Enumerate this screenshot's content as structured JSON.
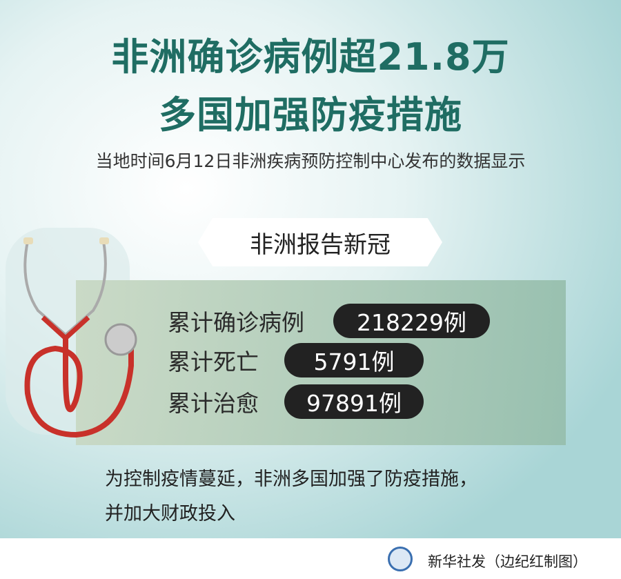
{
  "title": {
    "line1": "非洲确诊病例超21.8万",
    "line2": "多国加强防疫措施"
  },
  "subtitle": "当地时间6月12日非洲疾病预防控制中心发布的数据显示",
  "banner": "非洲报告新冠",
  "stats": [
    {
      "label": "累计确诊病例",
      "value": "218229例"
    },
    {
      "label": "累计死亡",
      "value": "5791例"
    },
    {
      "label": "累计治愈",
      "value": "97891例"
    }
  ],
  "body": {
    "line1": "为控制疫情蔓延，非洲多国加强了防疫措施，",
    "line2": "并加大财政投入"
  },
  "footer": {
    "credit": "新华社发（边纪红制图）",
    "logo": "xinhua-logo"
  },
  "colors": {
    "title": "#1f6d63",
    "pill": "#222222",
    "accent_red": "#c8312a"
  }
}
